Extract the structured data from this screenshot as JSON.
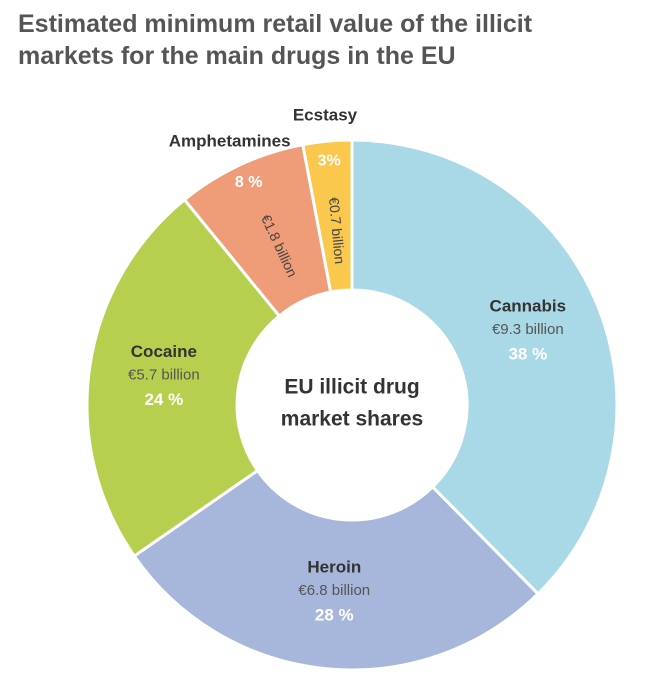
{
  "chart_data": {
    "type": "donut",
    "title": "Estimated minimum retail value of the illicit markets for the main drugs in the EU",
    "center_label": [
      "EU illicit drug",
      "market shares"
    ],
    "categories": [
      "Cannabis",
      "Heroin",
      "Cocaine",
      "Amphetamines",
      "Ecstasy"
    ],
    "sublabels": [
      "€9.3 billion",
      "€6.8 billion",
      "€5.7 billion",
      "€1.8 billion",
      "€0.7 billion"
    ],
    "values": [
      38,
      28,
      24,
      8,
      3
    ],
    "value_labels": [
      "38 %",
      "28 %",
      "24 %",
      "8 %",
      "3%"
    ],
    "colors": [
      "#a9d8e6",
      "#a7b6db",
      "#b7cf4f",
      "#ef9c78",
      "#f9c84d"
    ]
  }
}
